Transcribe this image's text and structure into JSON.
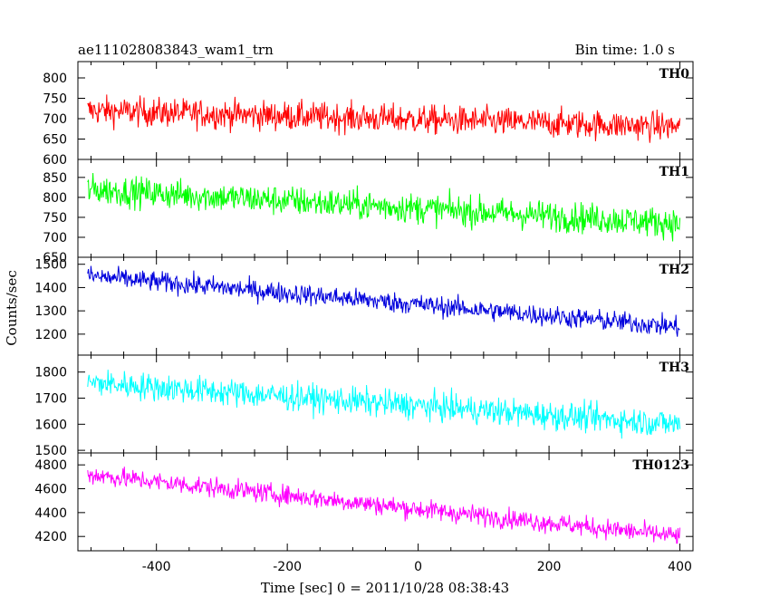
{
  "header": {
    "title": "ae111028083843_wam1_trn",
    "bin_time": "Bin time: 1.0 s"
  },
  "chart_data": {
    "type": "line",
    "xlabel": "Time [sec] 0 = 2011/10/28 08:38:43",
    "ylabel": "Counts/sec",
    "xlim": [
      -520,
      420
    ],
    "xticks": [
      -400,
      -200,
      0,
      200,
      400
    ],
    "grid": false,
    "sample_step_sec": 5,
    "panels": [
      {
        "name": "TH0",
        "color": "#ff0000",
        "ylim": [
          600,
          840
        ],
        "yticks": [
          600,
          650,
          700,
          750,
          800
        ],
        "x_range": [
          -505,
          400
        ],
        "trend": [
          720,
          680
        ],
        "noise": 32
      },
      {
        "name": "TH1",
        "color": "#00ff00",
        "ylim": [
          650,
          895
        ],
        "yticks": [
          650,
          700,
          750,
          800,
          850
        ],
        "x_range": [
          -505,
          400
        ],
        "trend": [
          820,
          735
        ],
        "noise": 34
      },
      {
        "name": "TH2",
        "color": "#0000dd",
        "ylim": [
          1110,
          1530
        ],
        "yticks": [
          1200,
          1300,
          1400,
          1500
        ],
        "x_range": [
          -505,
          400
        ],
        "trend": [
          1450,
          1230
        ],
        "noise": 40
      },
      {
        "name": "TH3",
        "color": "#00ffff",
        "ylim": [
          1490,
          1865
        ],
        "yticks": [
          1500,
          1600,
          1700,
          1800
        ],
        "x_range": [
          -505,
          400
        ],
        "trend": [
          1760,
          1600
        ],
        "noise": 48
      },
      {
        "name": "TH0123",
        "color": "#ff00ff",
        "ylim": [
          4080,
          4900
        ],
        "yticks": [
          4200,
          4400,
          4600,
          4800
        ],
        "x_range": [
          -505,
          400
        ],
        "trend": [
          4720,
          4200
        ],
        "noise": 75
      }
    ]
  }
}
